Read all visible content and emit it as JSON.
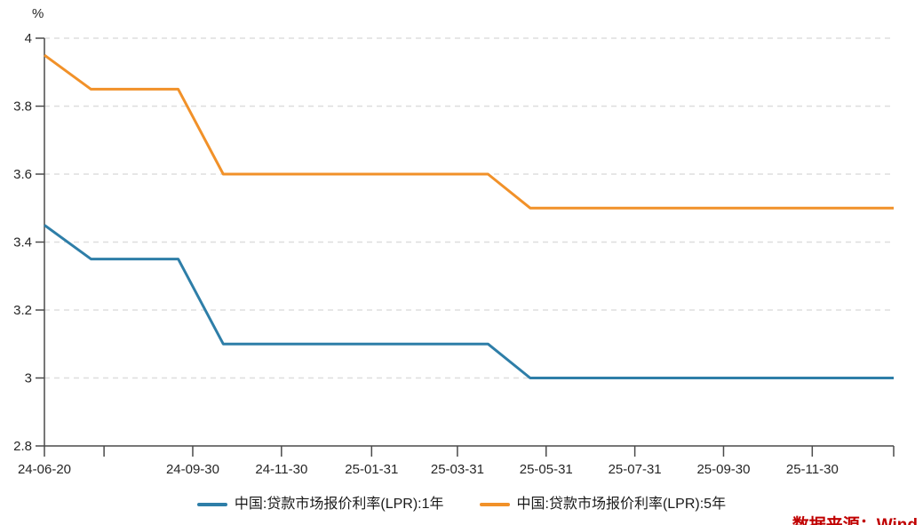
{
  "chart_data": {
    "type": "line",
    "title": "",
    "y_unit_label": "%",
    "grid": "horizontal-dashed",
    "legend_position": "bottom-center",
    "ylim": [
      2.8,
      4
    ],
    "y_ticks": [
      4,
      3.8,
      3.6,
      3.4,
      3.2,
      3,
      2.8
    ],
    "y_tick_labels": [
      "4",
      "3.8",
      "3.6",
      "3.4",
      "3.2",
      "3",
      "2.8"
    ],
    "xlim": [
      "2024-06-20",
      "2026-01-25"
    ],
    "x_ticks": [
      {
        "date": "2024-06-20",
        "label": "24-06-20"
      },
      {
        "date": "2024-07-31",
        "label": ""
      },
      {
        "date": "2024-09-30",
        "label": "24-09-30"
      },
      {
        "date": "2024-11-30",
        "label": "24-11-30"
      },
      {
        "date": "2025-01-31",
        "label": "25-01-31"
      },
      {
        "date": "2025-03-31",
        "label": "25-03-31"
      },
      {
        "date": "2025-05-31",
        "label": "25-05-31"
      },
      {
        "date": "2025-07-31",
        "label": "25-07-31"
      },
      {
        "date": "2025-09-30",
        "label": "25-09-30"
      },
      {
        "date": "2025-11-30",
        "label": "25-11-30"
      },
      {
        "date": "2026-01-25",
        "label": ""
      }
    ],
    "series": [
      {
        "name": "中国:贷款市场报价利率(LPR):1年",
        "color": "#2e7ea8",
        "points": [
          [
            "2024-06-20",
            3.45
          ],
          [
            "2024-07-22",
            3.35
          ],
          [
            "2024-09-20",
            3.35
          ],
          [
            "2024-10-21",
            3.1
          ],
          [
            "2025-04-21",
            3.1
          ],
          [
            "2025-05-20",
            3.0
          ],
          [
            "2026-01-25",
            3.0
          ]
        ]
      },
      {
        "name": "中国:贷款市场报价利率(LPR):5年",
        "color": "#f19129",
        "points": [
          [
            "2024-06-20",
            3.95
          ],
          [
            "2024-07-22",
            3.85
          ],
          [
            "2024-09-20",
            3.85
          ],
          [
            "2024-10-21",
            3.6
          ],
          [
            "2025-04-21",
            3.6
          ],
          [
            "2025-05-20",
            3.5
          ],
          [
            "2026-01-25",
            3.5
          ]
        ]
      }
    ],
    "colors": {
      "grid": "#dedede",
      "axis": "#4a4a4a",
      "tick_text": "#262626"
    }
  },
  "source_note": {
    "text": "数据来源：Wind",
    "color": "#c00000"
  }
}
